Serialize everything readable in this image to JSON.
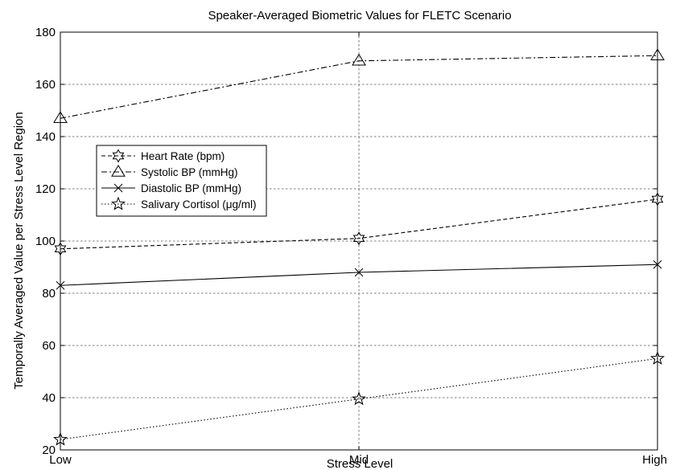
{
  "chart_data": {
    "type": "line",
    "title": "Speaker-Averaged Biometric Values for FLETC Scenario",
    "xlabel": "Stress Level",
    "ylabel": "Temporally Averaged Value per Stress Level Region",
    "categories": [
      "Low",
      "Mid",
      "High"
    ],
    "ylim": [
      20,
      180
    ],
    "yticks": [
      20,
      40,
      60,
      80,
      100,
      120,
      140,
      160,
      180
    ],
    "grid": true,
    "legend_position": "center-left",
    "series": [
      {
        "name": "Heart Rate (bpm)",
        "values": [
          97,
          101,
          116
        ],
        "line_style": "dashed",
        "marker": "hexagram"
      },
      {
        "name": "Systolic BP (mmHg)",
        "values": [
          147,
          169,
          171
        ],
        "line_style": "dash-dot",
        "marker": "triangle"
      },
      {
        "name": "Diastolic BP (mmHg)",
        "values": [
          83,
          88,
          91
        ],
        "line_style": "solid",
        "marker": "x"
      },
      {
        "name": "Salivary Cortisol (μg/ml)",
        "values": [
          24,
          39.5,
          55
        ],
        "line_style": "dotted",
        "marker": "pentagram"
      }
    ]
  }
}
